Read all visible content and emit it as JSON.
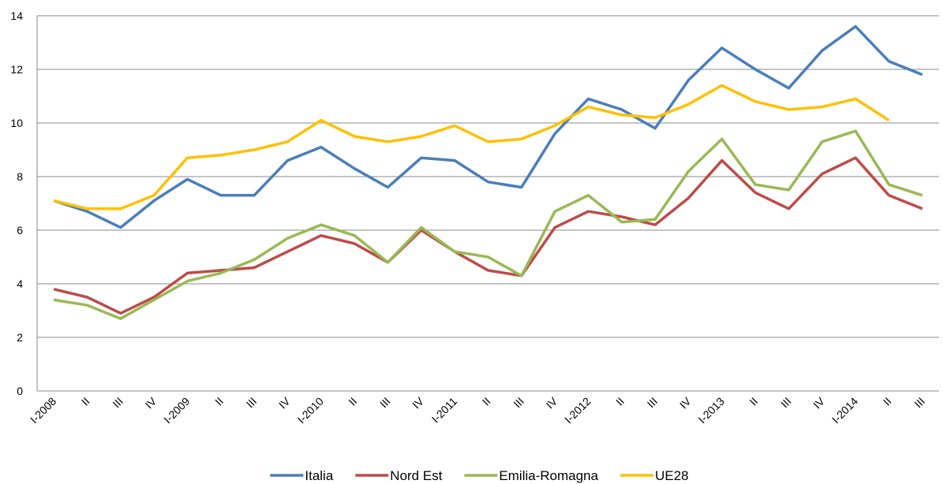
{
  "chart_data": {
    "type": "line",
    "categories": [
      "I-2008",
      "II",
      "III",
      "IV",
      "I-2009",
      "II",
      "III",
      "IV",
      "I-2010",
      "II",
      "III",
      "IV",
      "I-2011",
      "II",
      "III",
      "IV",
      "I-2012",
      "II",
      "III",
      "IV",
      "I-2013",
      "II",
      "III",
      "IV",
      "I-2014",
      "II",
      "III"
    ],
    "series": [
      {
        "name": "Italia",
        "color": "#4a7ebb",
        "values": [
          7.1,
          6.7,
          6.1,
          7.1,
          7.9,
          7.3,
          7.3,
          8.6,
          9.1,
          8.3,
          7.6,
          8.7,
          8.6,
          7.8,
          7.6,
          9.6,
          10.9,
          10.5,
          9.8,
          11.6,
          12.8,
          12.0,
          11.3,
          12.7,
          13.6,
          12.3,
          11.8
        ]
      },
      {
        "name": "Nord Est",
        "color": "#be4b48",
        "values": [
          3.8,
          3.5,
          2.9,
          3.5,
          4.4,
          4.5,
          4.6,
          5.2,
          5.8,
          5.5,
          4.8,
          6.0,
          5.2,
          4.5,
          4.3,
          6.1,
          6.7,
          6.5,
          6.2,
          7.2,
          8.6,
          7.4,
          6.8,
          8.1,
          8.7,
          7.3,
          6.8
        ]
      },
      {
        "name": "Emilia-Romagna",
        "color": "#98b954",
        "values": [
          3.4,
          3.2,
          2.7,
          3.4,
          4.1,
          4.4,
          4.9,
          5.7,
          6.2,
          5.8,
          4.8,
          6.1,
          5.2,
          5.0,
          4.3,
          6.7,
          7.3,
          6.3,
          6.4,
          8.2,
          9.4,
          7.7,
          7.5,
          9.3,
          9.7,
          7.7,
          7.3
        ]
      },
      {
        "name": "UE28",
        "color": "#ffc000",
        "values": [
          7.1,
          6.8,
          6.8,
          7.3,
          8.7,
          8.8,
          9.0,
          9.3,
          10.1,
          9.5,
          9.3,
          9.5,
          9.9,
          9.3,
          9.4,
          9.9,
          10.6,
          10.3,
          10.2,
          10.7,
          11.4,
          10.8,
          10.5,
          10.6,
          10.9,
          10.1,
          null
        ]
      }
    ],
    "ylim": [
      0,
      14
    ],
    "yticks": [
      0,
      2,
      4,
      6,
      8,
      10,
      12,
      14
    ],
    "grid": true,
    "legend": "bottom"
  }
}
